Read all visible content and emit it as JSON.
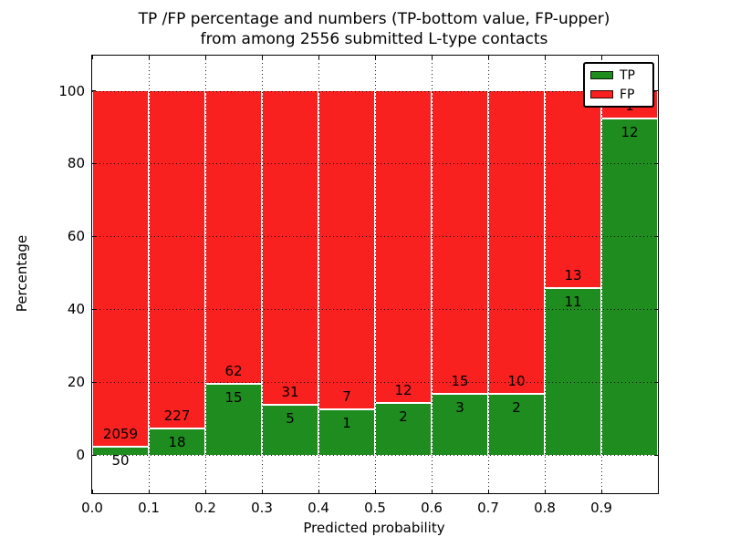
{
  "figure": {
    "title_line1": "TP /FP percentage and numbers (TP-bottom value, FP-upper)",
    "title_line2": "from among 2556 submitted L-type contacts"
  },
  "chart_data": {
    "type": "bar",
    "stacked": true,
    "normalized_to_percent": true,
    "title": "TP /FP percentage and numbers (TP-bottom value, FP-upper) from among 2556 submitted L-type contacts",
    "xlabel": "Predicted probability",
    "ylabel": "Percentage",
    "total_contacts": 2556,
    "bin_width": 0.1,
    "categories": [
      "0.0-0.1",
      "0.1-0.2",
      "0.2-0.3",
      "0.3-0.4",
      "0.4-0.5",
      "0.5-0.6",
      "0.6-0.7",
      "0.7-0.8",
      "0.8-0.9",
      "0.9-1.0"
    ],
    "series": [
      {
        "name": "TP",
        "color": "#1e8c1e",
        "counts": [
          50,
          18,
          15,
          5,
          1,
          2,
          3,
          2,
          11,
          12
        ]
      },
      {
        "name": "FP",
        "color": "#f92020",
        "counts": [
          2059,
          227,
          62,
          31,
          7,
          12,
          15,
          10,
          13,
          1
        ]
      }
    ],
    "tp_percent_by_bin": [
      2.37,
      7.35,
      19.48,
      13.89,
      12.5,
      14.29,
      16.67,
      16.67,
      45.83,
      92.31
    ],
    "x_tick_labels": [
      "0.0",
      "0.1",
      "0.2",
      "0.3",
      "0.4",
      "0.5",
      "0.6",
      "0.7",
      "0.8",
      "0.9"
    ],
    "y_tick_values": [
      0,
      20,
      40,
      60,
      80,
      100
    ],
    "xlim": [
      0.0,
      1.0
    ],
    "ylim": [
      -11,
      110
    ],
    "grid": {
      "style": "dotted",
      "color": "#000000"
    },
    "legend": {
      "position": "upper right",
      "entries": [
        {
          "label": "TP",
          "color": "#1e8c1e"
        },
        {
          "label": "FP",
          "color": "#f92020"
        }
      ]
    }
  }
}
